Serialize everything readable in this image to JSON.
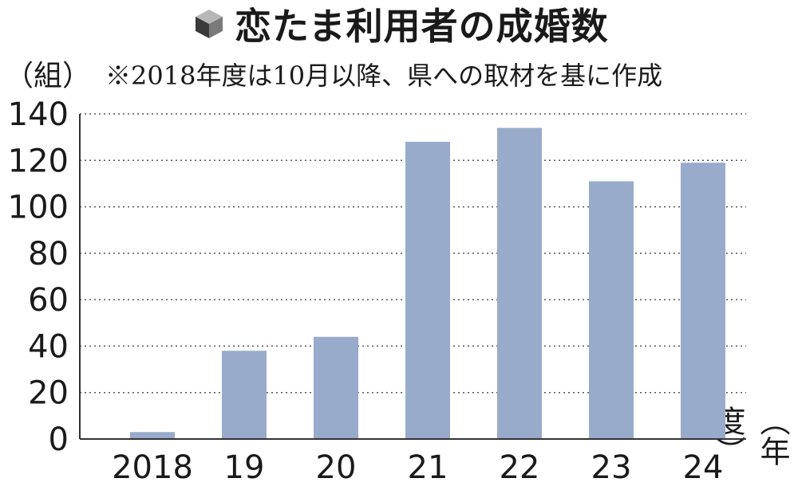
{
  "header": {
    "title": "恋たま利用者の成婚数",
    "icon": "cube-icon"
  },
  "y_unit": "（組）",
  "note": "※2018年度は10月以降、県への取材を基に作成",
  "x_unit": "（年度）",
  "colors": {
    "bar": "#99abcb",
    "axis": "#333333",
    "grid": "#555555"
  },
  "chart_data": {
    "type": "bar",
    "title": "恋たま利用者の成婚数",
    "categories": [
      "2018",
      "19",
      "20",
      "21",
      "22",
      "23",
      "24"
    ],
    "values": [
      3,
      38,
      44,
      128,
      134,
      111,
      119
    ],
    "ylabel": "（組）",
    "xlabel": "（年度）",
    "ylim": [
      0,
      140
    ],
    "yticks": [
      0,
      20,
      40,
      60,
      80,
      100,
      120,
      140
    ],
    "grid": true
  }
}
